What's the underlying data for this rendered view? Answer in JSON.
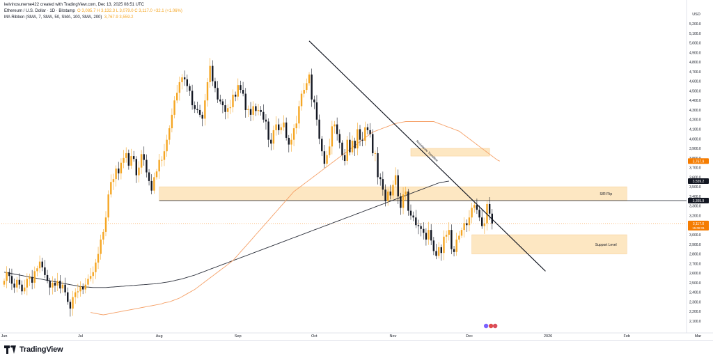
{
  "header": {
    "line1": "kelvinosuneme422 created with TradingView.com, Dec 13, 2025 08:51 UTC",
    "symbol": "Ethereum / U.S. Dollar · 1D · Bitstamp",
    "ohlc": "O 3,085.7  H 3,132.3  L 3,079.0  C 3,117.0  +32.1 (+1.06%)",
    "line3_name": "MA Ribbon (SMA, 7, SMA, 50, SMA, 100, SMA, 200)",
    "line3_values": "3,767.9   3,559.2"
  },
  "brand": {
    "name": "TradingView"
  },
  "colors": {
    "up": "#f5a623",
    "down": "#131722",
    "ma100": "#f5a067",
    "ma200": "#2a2e39",
    "zone": "#fde3b8",
    "label_orange": "#f57c00",
    "label_dark": "#131722"
  },
  "chart_data": {
    "type": "candlestick",
    "title": "Ethereum / U.S. Dollar · 1D · Bitstamp",
    "currency_label": "USD",
    "y_ticks": [
      2100,
      2200,
      2300,
      2400,
      2500,
      2600,
      2700,
      2800,
      2900,
      3000,
      3100,
      3200,
      3300,
      3400,
      3500,
      3600,
      3700,
      3800,
      3900,
      4000,
      4100,
      4200,
      4300,
      4400,
      4500,
      4600,
      4700,
      4800,
      4900,
      5000,
      5100,
      5200
    ],
    "y_tick_labels": [
      "2,100.0",
      "2,200.0",
      "2,300.0",
      "2,400.0",
      "2,500.0",
      "2,600.0",
      "2,700.0",
      "2,800.0",
      "2,900.0",
      "3,000.0",
      "3,100.0",
      "3,200.0",
      "3,300.0",
      "3,400.0",
      "3,500.0",
      "3,600.0",
      "3,700.0",
      "3,800.0",
      "3,900.0",
      "4,000.0",
      "4,100.0",
      "4,200.0",
      "4,300.0",
      "4,400.0",
      "4,500.0",
      "4,600.0",
      "4,700.0",
      "4,800.0",
      "4,900.0",
      "5,000.0",
      "5,100.0",
      "5,200.0"
    ],
    "x_ticks": [
      {
        "label": "Jun",
        "day": 0
      },
      {
        "label": "Jul",
        "day": 30
      },
      {
        "label": "Aug",
        "day": 61
      },
      {
        "label": "Sep",
        "day": 92
      },
      {
        "label": "Oct",
        "day": 122
      },
      {
        "label": "Nov",
        "day": 153
      },
      {
        "label": "Dec",
        "day": 183
      },
      {
        "label": "2026",
        "day": 214
      },
      {
        "label": "Feb",
        "day": 245
      },
      {
        "label": "Mar",
        "day": 273
      }
    ],
    "candles_close": [
      2520,
      2610,
      2570,
      2490,
      2450,
      2530,
      2480,
      2410,
      2450,
      2540,
      2560,
      2500,
      2620,
      2650,
      2720,
      2660,
      2580,
      2520,
      2450,
      2500,
      2470,
      2520,
      2440,
      2480,
      2400,
      2300,
      2230,
      2350,
      2400,
      2410,
      2460,
      2430,
      2480,
      2540,
      2570,
      2610,
      2710,
      2800,
      2950,
      3030,
      3180,
      3420,
      3550,
      3580,
      3690,
      3640,
      3750,
      3800,
      3850,
      3720,
      3820,
      3790,
      3620,
      3700,
      3840,
      3780,
      3650,
      3560,
      3460,
      3600,
      3660,
      3780,
      3780,
      3870,
      3990,
      4110,
      4250,
      4400,
      4480,
      4590,
      4640,
      4620,
      4550,
      4500,
      4350,
      4310,
      4300,
      4250,
      4210,
      4400,
      4590,
      4760,
      4600,
      4530,
      4410,
      4390,
      4350,
      4280,
      4320,
      4330,
      4460,
      4440,
      4560,
      4510,
      4470,
      4300,
      4310,
      4250,
      4340,
      4290,
      4300,
      4280,
      4200,
      4180,
      3990,
      3950,
      4090,
      4150,
      4090,
      4120,
      4170,
      4010,
      3940,
      3990,
      4110,
      4160,
      4340,
      4470,
      4510,
      4580,
      4670,
      4410,
      4380,
      4200,
      4000,
      3870,
      3740,
      3830,
      3920,
      4130,
      4150,
      4050,
      3960,
      3830,
      3770,
      3990,
      3860,
      3980,
      3900,
      4100,
      3990,
      3980,
      4120,
      4090,
      4050,
      3850,
      3850,
      3600,
      3580,
      3470,
      3350,
      3450,
      3410,
      3520,
      3620,
      3400,
      3280,
      3420,
      3450,
      3250,
      3200,
      3180,
      3100,
      3090,
      3060,
      3020,
      2950,
      3050,
      2940,
      2830,
      2780,
      2870,
      2810,
      2980,
      3000,
      3050,
      2850,
      2820,
      2950,
      2990,
      3050,
      3120,
      3100,
      3180,
      3280,
      3310,
      3260,
      3180,
      3090,
      3120,
      3320,
      3220,
      3117
    ],
    "ma100": [
      2190,
      2185,
      2180,
      2175,
      2170,
      2165,
      2170,
      2175,
      2180,
      2185,
      2190,
      2195,
      2200,
      2205,
      2210,
      2215,
      2220,
      2225,
      2230,
      2235,
      2240,
      2245,
      2250,
      2255,
      2260,
      2265,
      2270,
      2275,
      2280,
      2290,
      2295,
      2300,
      2310,
      2320,
      2330,
      2340,
      2355,
      2370,
      2385,
      2400,
      2415,
      2430,
      2450,
      2470,
      2490,
      2510,
      2530,
      2550,
      2570,
      2590,
      2610,
      2630,
      2650,
      2670,
      2690,
      2710,
      2730,
      2760,
      2790,
      2820,
      2850,
      2880,
      2910,
      2940,
      2970,
      3000,
      3030,
      3060,
      3090,
      3120,
      3150,
      3180,
      3210,
      3240,
      3270,
      3300,
      3330,
      3360,
      3390,
      3420,
      3450,
      3470,
      3490,
      3510,
      3530,
      3550,
      3570,
      3590,
      3610,
      3630,
      3650,
      3670,
      3690,
      3710,
      3730,
      3750,
      3770,
      3790,
      3810,
      3830,
      3850,
      3870,
      3890,
      3910,
      3930,
      3950,
      3970,
      3990,
      4010,
      4030,
      4050,
      4070,
      4080,
      4090,
      4100,
      4110,
      4120,
      4130,
      4140,
      4150,
      4160,
      4165,
      4170,
      4175,
      4180,
      4180,
      4180,
      4180,
      4180,
      4180,
      4180,
      4180,
      4180,
      4180,
      4180,
      4180,
      4170,
      4160,
      4150,
      4140,
      4130,
      4120,
      4110,
      4100,
      4090,
      4080,
      4060,
      4040,
      4020,
      4000,
      3980,
      3960,
      3940,
      3920,
      3900,
      3880,
      3860,
      3840,
      3820,
      3800,
      3780,
      3767.9
    ],
    "ma100_start_day": 34,
    "ma200": [
      2610,
      2605,
      2600,
      2595,
      2590,
      2585,
      2580,
      2575,
      2570,
      2565,
      2560,
      2555,
      2550,
      2545,
      2540,
      2535,
      2530,
      2525,
      2520,
      2515,
      2510,
      2505,
      2500,
      2495,
      2490,
      2485,
      2480,
      2475,
      2470,
      2465,
      2460,
      2458,
      2456,
      2454,
      2452,
      2450,
      2450,
      2450,
      2450,
      2450,
      2450,
      2452,
      2454,
      2456,
      2458,
      2460,
      2462,
      2464,
      2466,
      2468,
      2470,
      2472,
      2474,
      2476,
      2478,
      2480,
      2482,
      2484,
      2486,
      2488,
      2490,
      2494,
      2498,
      2502,
      2506,
      2510,
      2516,
      2522,
      2528,
      2534,
      2540,
      2548,
      2556,
      2564,
      2572,
      2580,
      2590,
      2600,
      2610,
      2620,
      2630,
      2640,
      2650,
      2660,
      2670,
      2680,
      2690,
      2700,
      2710,
      2720,
      2730,
      2740,
      2750,
      2760,
      2770,
      2780,
      2790,
      2800,
      2810,
      2820,
      2830,
      2840,
      2850,
      2860,
      2870,
      2880,
      2890,
      2900,
      2910,
      2920,
      2930,
      2940,
      2950,
      2960,
      2970,
      2980,
      2990,
      3000,
      3010,
      3020,
      3030,
      3040,
      3050,
      3060,
      3070,
      3080,
      3090,
      3100,
      3110,
      3120,
      3130,
      3140,
      3150,
      3160,
      3170,
      3180,
      3190,
      3200,
      3210,
      3220,
      3230,
      3240,
      3250,
      3260,
      3270,
      3280,
      3290,
      3300,
      3310,
      3320,
      3330,
      3340,
      3350,
      3360,
      3370,
      3380,
      3390,
      3400,
      3410,
      3420,
      3430,
      3440,
      3450,
      3460,
      3470,
      3480,
      3490,
      3500,
      3510,
      3520,
      3530,
      3540,
      3545,
      3550,
      3555,
      3559.2
    ],
    "ma200_start_day": 0,
    "zones": [
      {
        "name": "upper-resistance-zone",
        "from_day": 160,
        "to_day": 191,
        "low": 3820,
        "high": 3900
      },
      {
        "name": "sr-flip-zone",
        "from_day": 61,
        "to_day": 245,
        "low": 3355.9,
        "high": 3500,
        "label": "S/R Flip"
      },
      {
        "name": "support-zone",
        "from_day": 184,
        "to_day": 245,
        "low": 2800,
        "high": 3000,
        "label": "Support Level"
      }
    ],
    "trendline": {
      "label": "Resistance Trendline",
      "from": {
        "day": 120,
        "price": 5020
      },
      "to": {
        "day": 213,
        "price": 2620
      }
    },
    "horizontal_line": {
      "price": 3355.9
    },
    "price_labels": [
      {
        "price": 3767.9,
        "text": "3,767.9",
        "kind": "ma100"
      },
      {
        "price": 3559.2,
        "text": "3,559.2",
        "kind": "ma200"
      },
      {
        "price": 3355.9,
        "text": "3,355.9",
        "kind": "level"
      },
      {
        "price": 3117.0,
        "text": "3,117.0",
        "sub": "15:08:31",
        "kind": "last"
      }
    ]
  }
}
